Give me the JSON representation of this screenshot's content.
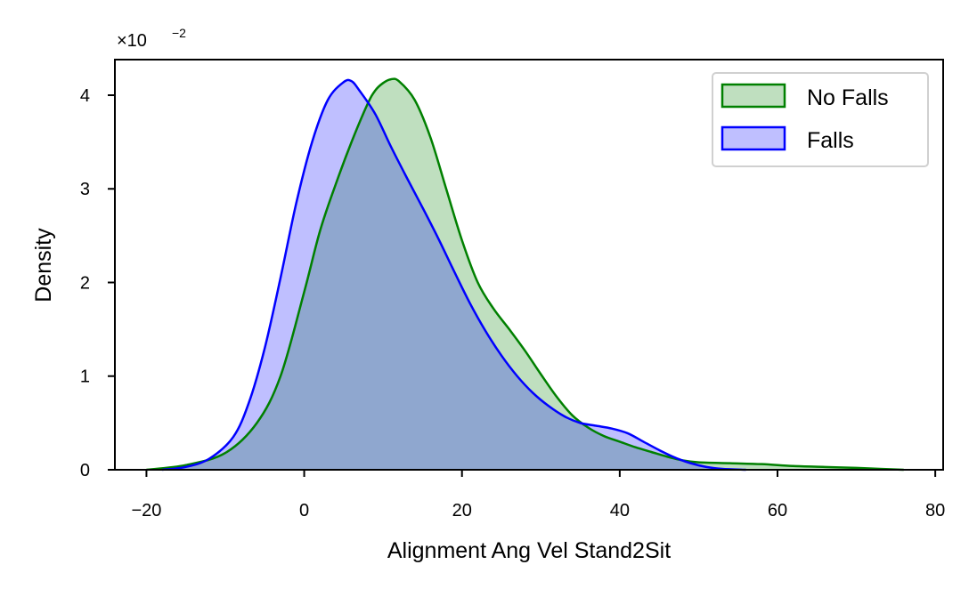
{
  "chart_data": {
    "type": "area",
    "xlabel": "Alignment Ang Vel Stand2Sit",
    "ylabel": "Density",
    "y_multiplier_label": "×10",
    "y_multiplier_exponent": "−2",
    "xlim": [
      -24,
      81
    ],
    "ylim": [
      0,
      4.38
    ],
    "x_ticks": [
      -20,
      0,
      20,
      40,
      60,
      80
    ],
    "x_tick_labels": [
      "−20",
      "0",
      "20",
      "40",
      "60",
      "80"
    ],
    "y_ticks": [
      0,
      1,
      2,
      3,
      4
    ],
    "y_tick_labels": [
      "0",
      "1",
      "2",
      "3",
      "4"
    ],
    "grid": false,
    "legend_position": "top-right",
    "series": [
      {
        "name": "No Falls",
        "line_color": "#008000",
        "fill_color": "#008000",
        "fill_opacity": 0.25,
        "points": [
          [
            -20,
            0.0
          ],
          [
            -15,
            0.05
          ],
          [
            -10,
            0.18
          ],
          [
            -6,
            0.5
          ],
          [
            -3,
            1.0
          ],
          [
            0,
            1.9
          ],
          [
            2,
            2.55
          ],
          [
            4,
            3.05
          ],
          [
            6,
            3.5
          ],
          [
            8,
            3.9
          ],
          [
            9,
            4.05
          ],
          [
            10,
            4.13
          ],
          [
            11,
            4.17
          ],
          [
            12,
            4.15
          ],
          [
            14,
            3.95
          ],
          [
            16,
            3.55
          ],
          [
            18,
            3.0
          ],
          [
            20,
            2.45
          ],
          [
            22,
            2.0
          ],
          [
            24,
            1.72
          ],
          [
            26,
            1.5
          ],
          [
            28,
            1.27
          ],
          [
            30,
            1.02
          ],
          [
            32,
            0.78
          ],
          [
            34,
            0.58
          ],
          [
            36,
            0.45
          ],
          [
            38,
            0.36
          ],
          [
            40,
            0.3
          ],
          [
            42,
            0.24
          ],
          [
            44,
            0.19
          ],
          [
            46,
            0.14
          ],
          [
            48,
            0.1
          ],
          [
            50,
            0.08
          ],
          [
            54,
            0.07
          ],
          [
            58,
            0.06
          ],
          [
            62,
            0.04
          ],
          [
            66,
            0.03
          ],
          [
            70,
            0.02
          ],
          [
            73,
            0.01
          ],
          [
            76,
            0.0
          ]
        ]
      },
      {
        "name": "Falls",
        "line_color": "#0000ff",
        "fill_color": "#0000ff",
        "fill_opacity": 0.25,
        "points": [
          [
            -18,
            0.0
          ],
          [
            -15,
            0.03
          ],
          [
            -12,
            0.12
          ],
          [
            -9,
            0.35
          ],
          [
            -7,
            0.72
          ],
          [
            -5,
            1.3
          ],
          [
            -3,
            2.05
          ],
          [
            -1,
            2.85
          ],
          [
            1,
            3.5
          ],
          [
            3,
            3.95
          ],
          [
            5,
            4.14
          ],
          [
            6,
            4.15
          ],
          [
            7,
            4.05
          ],
          [
            9,
            3.8
          ],
          [
            11,
            3.45
          ],
          [
            13,
            3.12
          ],
          [
            15,
            2.8
          ],
          [
            17,
            2.47
          ],
          [
            19,
            2.12
          ],
          [
            21,
            1.78
          ],
          [
            23,
            1.48
          ],
          [
            25,
            1.22
          ],
          [
            27,
            1.0
          ],
          [
            29,
            0.82
          ],
          [
            31,
            0.68
          ],
          [
            33,
            0.57
          ],
          [
            35,
            0.5
          ],
          [
            37,
            0.47
          ],
          [
            39,
            0.44
          ],
          [
            41,
            0.39
          ],
          [
            43,
            0.3
          ],
          [
            45,
            0.21
          ],
          [
            47,
            0.13
          ],
          [
            49,
            0.07
          ],
          [
            51,
            0.03
          ],
          [
            53,
            0.01
          ],
          [
            56,
            0.0
          ]
        ]
      }
    ]
  }
}
